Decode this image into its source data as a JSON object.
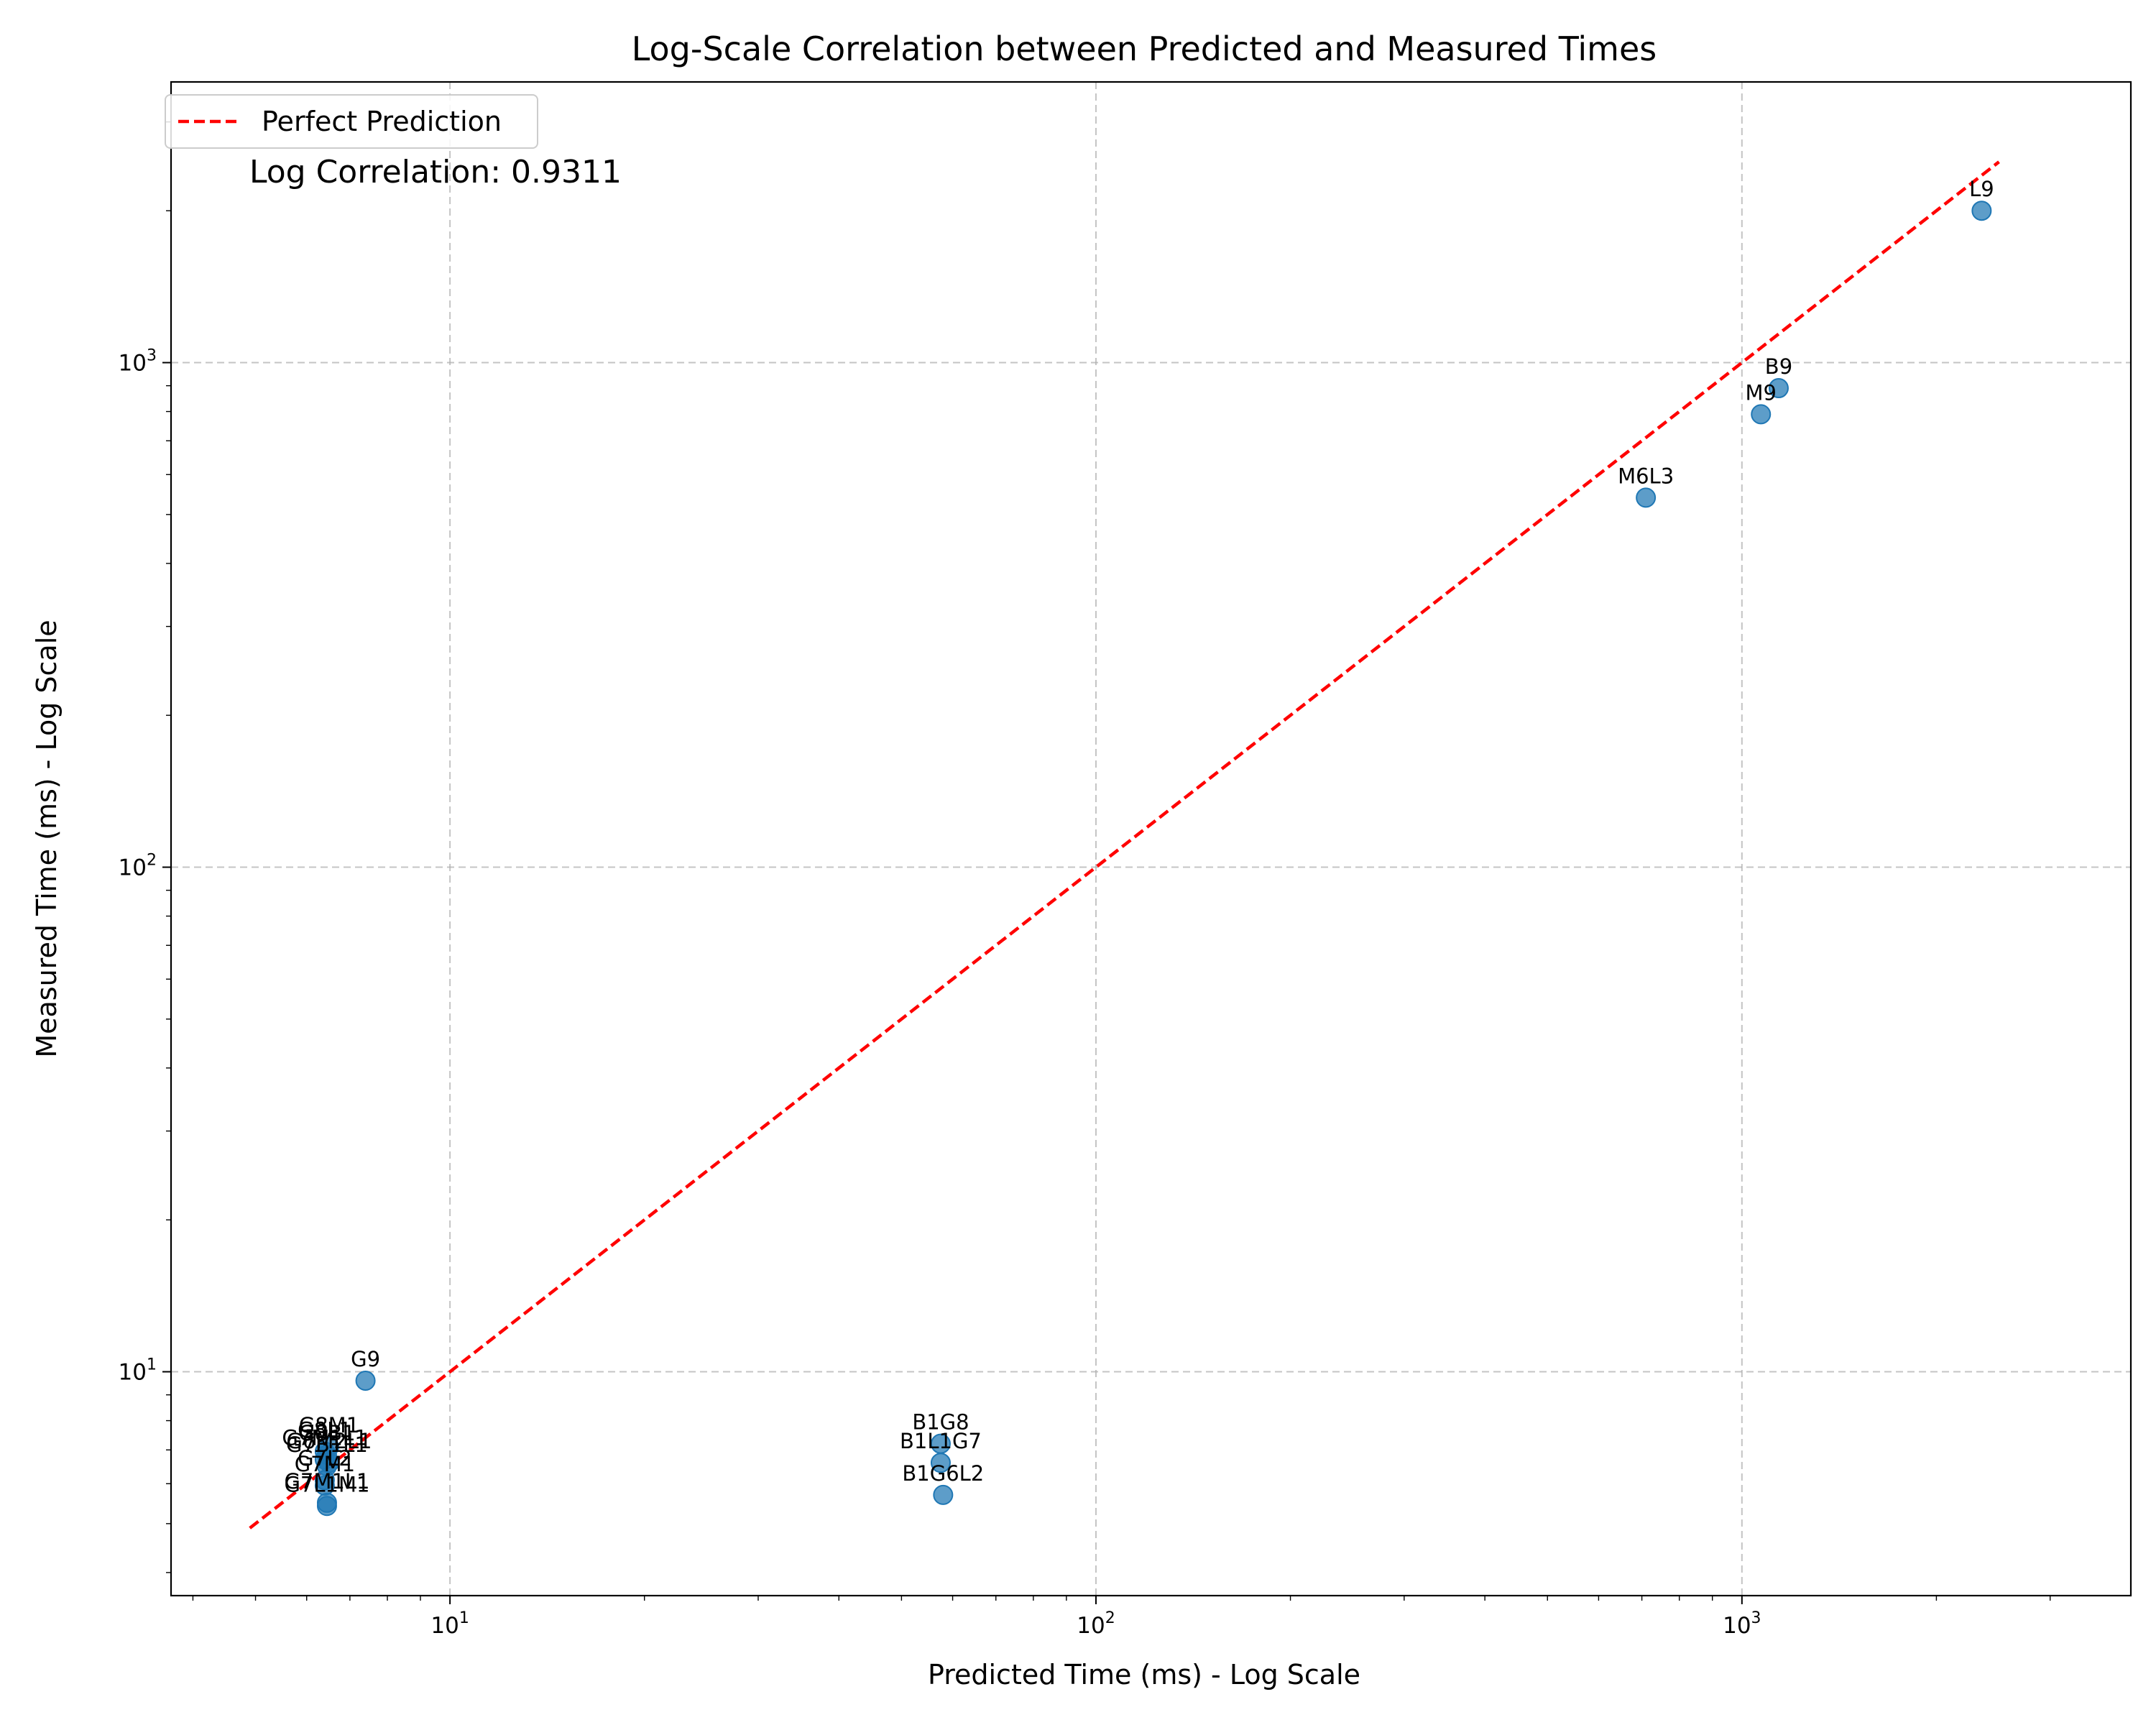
{
  "chart_data": {
    "type": "scatter",
    "title": "Log-Scale Correlation between Predicted and Measured Times",
    "xlabel": "Predicted Time (ms) - Log Scale",
    "ylabel": "Measured Time (ms) - Log Scale",
    "xscale": "log",
    "yscale": "log",
    "xlim": [
      3.7,
      4000
    ],
    "ylim": [
      3.6,
      3600
    ],
    "x_ticks": [
      {
        "value": 10,
        "base": "10",
        "exp": "1"
      },
      {
        "value": 100,
        "base": "10",
        "exp": "2"
      },
      {
        "value": 1000,
        "base": "10",
        "exp": "3"
      }
    ],
    "y_ticks": [
      {
        "value": 10,
        "base": "10",
        "exp": "1"
      },
      {
        "value": 100,
        "base": "10",
        "exp": "2"
      },
      {
        "value": 1000,
        "base": "10",
        "exp": "3"
      }
    ],
    "grid": true,
    "legend": {
      "position": "top-left",
      "entries": [
        "Perfect Prediction"
      ]
    },
    "annotation": "Log Correlation: 0.9311",
    "colors": {
      "points": "#1f77b4",
      "line": "#ff0000"
    },
    "reference_line": {
      "from": 4.9,
      "to": 2500
    },
    "points": [
      {
        "label": "L9",
        "x": 2350,
        "y": 2000
      },
      {
        "label": "B9",
        "x": 1140,
        "y": 890
      },
      {
        "label": "M9",
        "x": 1070,
        "y": 790
      },
      {
        "label": "M6L3",
        "x": 710,
        "y": 540
      },
      {
        "label": "G9",
        "x": 7.4,
        "y": 9.6
      },
      {
        "label": "B1G8",
        "x": 57.5,
        "y": 7.2
      },
      {
        "label": "B1L1G7",
        "x": 57.5,
        "y": 6.6
      },
      {
        "label": "B1G6L2",
        "x": 58,
        "y": 5.7
      },
      {
        "label": "G8M1",
        "x": 6.5,
        "y": 7.1
      },
      {
        "label": "G8L1",
        "x": 6.4,
        "y": 6.95
      },
      {
        "label": "G8B1",
        "x": 6.45,
        "y": 6.85
      },
      {
        "label": "G7M1L1",
        "x": 6.4,
        "y": 6.7
      },
      {
        "label": "G6M2L1",
        "x": 6.5,
        "y": 6.6
      },
      {
        "label": "G7B1L1",
        "x": 6.45,
        "y": 6.5
      },
      {
        "label": "G7L2",
        "x": 6.4,
        "y": 6.1
      },
      {
        "label": "G7M1",
        "x": 6.4,
        "y": 5.95
      },
      {
        "label": "G7M1L1",
        "x": 6.45,
        "y": 5.5
      },
      {
        "label": "G7L1M1",
        "x": 6.45,
        "y": 5.42
      }
    ]
  }
}
